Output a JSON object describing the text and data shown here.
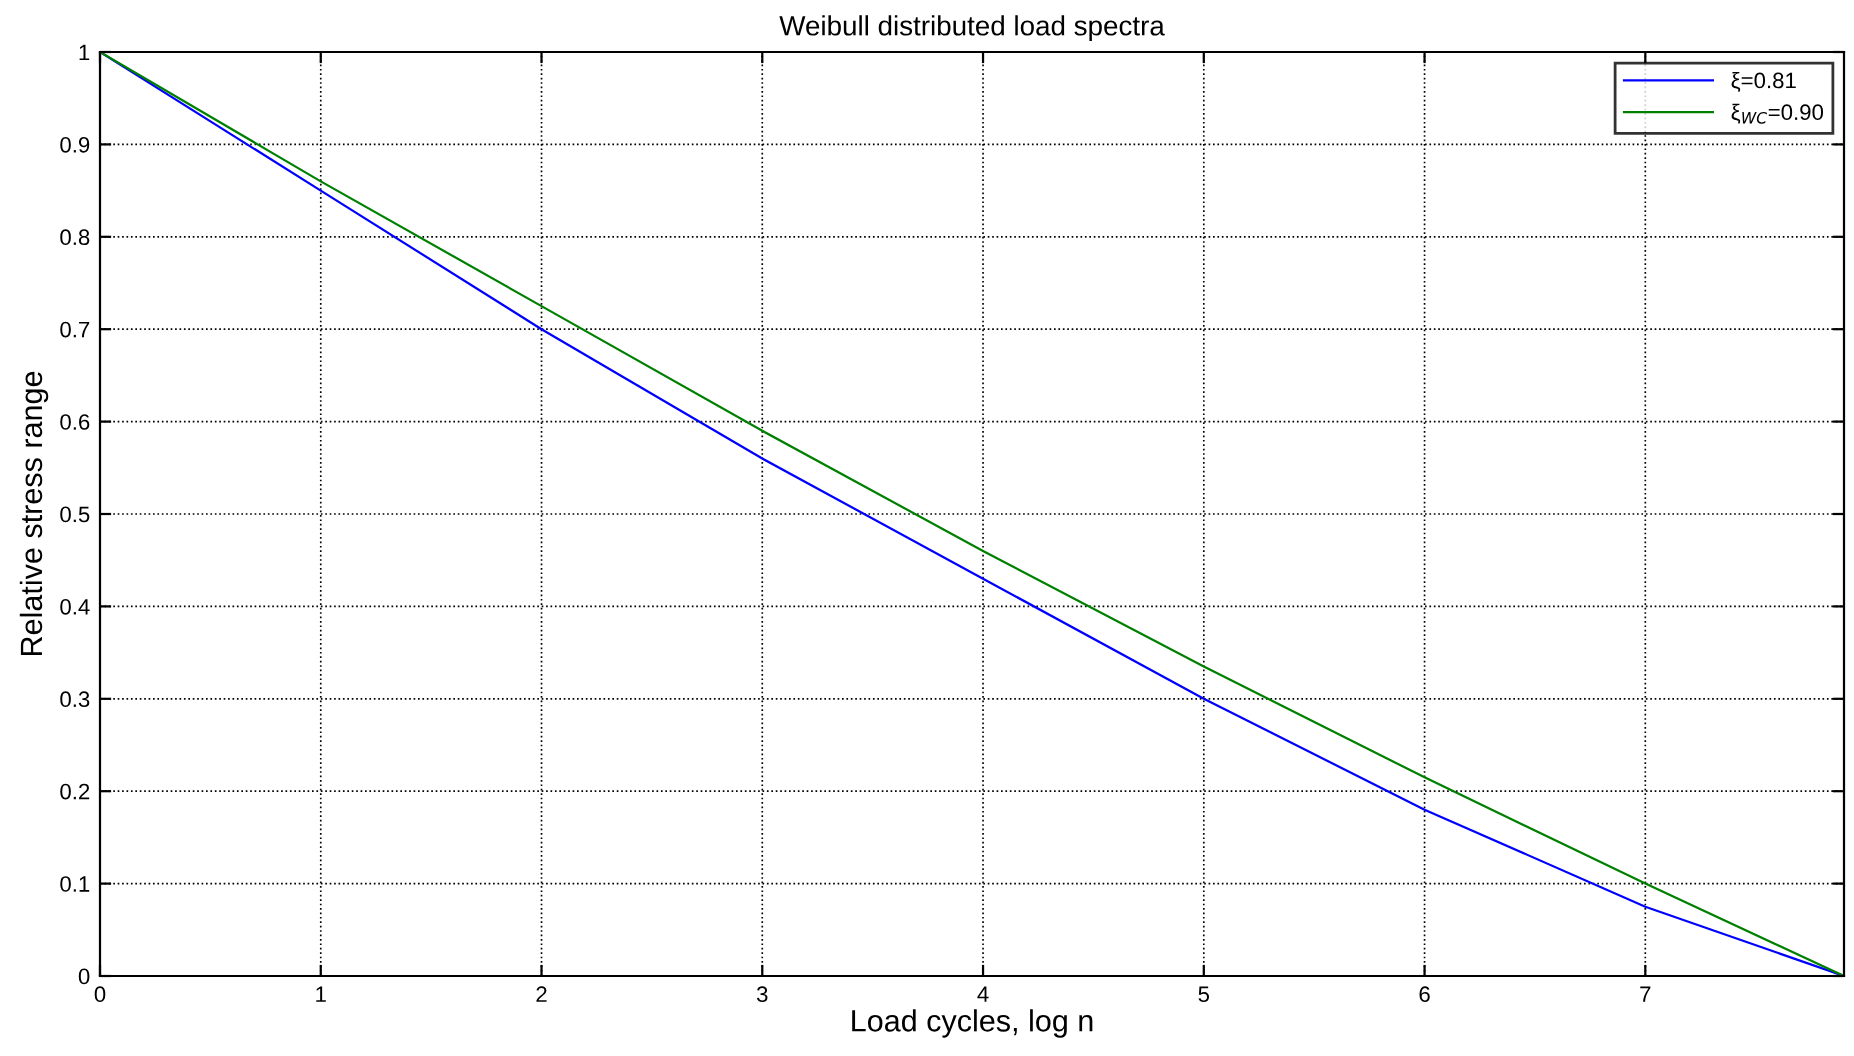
{
  "chart_data": {
    "type": "line",
    "title": "Weibull distributed load spectra",
    "xlabel": "Load cycles, log n",
    "ylabel": "Relative stress range",
    "x": [
      0,
      1,
      2,
      3,
      4,
      5,
      6,
      7,
      7.9
    ],
    "series": [
      {
        "name": "ξ=0.81",
        "color": "#0000ff",
        "values": [
          1,
          0.85,
          0.7,
          0.56,
          0.43,
          0.3,
          0.18,
          0.075,
          0
        ]
      },
      {
        "name": "ξ$_{WC}$=0.90",
        "color": "#008000",
        "values": [
          1,
          0.86,
          0.725,
          0.59,
          0.46,
          0.335,
          0.215,
          0.1,
          0
        ]
      }
    ],
    "xlim": [
      0,
      7.9
    ],
    "ylim": [
      0,
      1
    ],
    "xticks": [
      0,
      1,
      2,
      3,
      4,
      5,
      6,
      7
    ],
    "yticks": [
      0,
      0.1,
      0.2,
      0.3,
      0.4,
      0.5,
      0.6,
      0.7,
      0.8,
      0.9,
      1
    ],
    "grid": true,
    "legend": "top right",
    "marker": "none",
    "line_style": "solid"
  }
}
